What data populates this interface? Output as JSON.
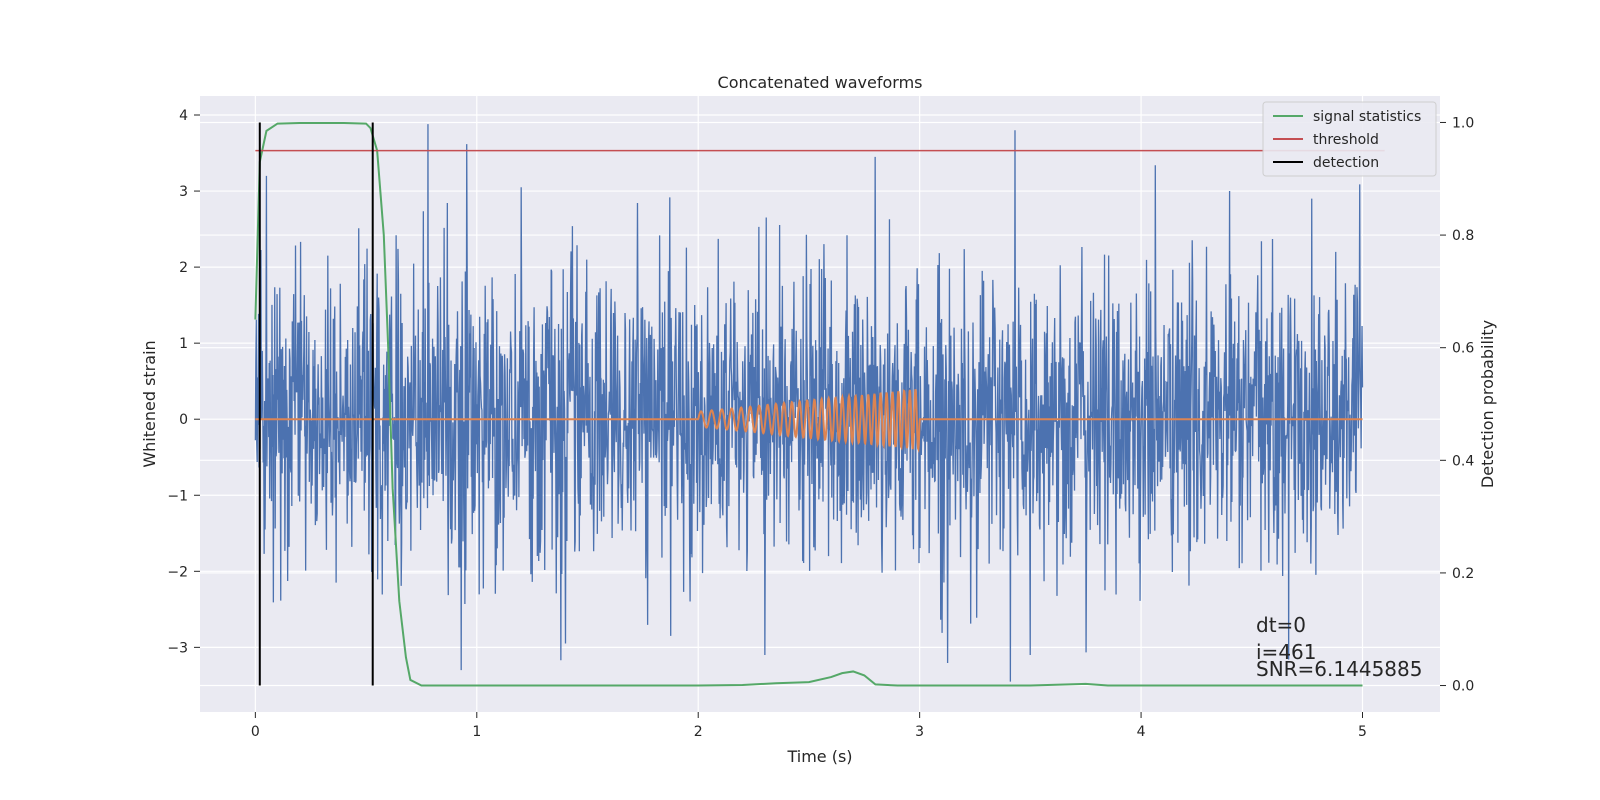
{
  "chart_data": {
    "type": "line",
    "title": "Concatenated waveforms",
    "xlabel": "Time (s)",
    "ylabel_left": "Whitened strain",
    "ylabel_right": "Detection probability",
    "xlim": [
      -0.25,
      5.35
    ],
    "ylim_left": [
      -3.85,
      4.25
    ],
    "ylim_right": [
      -0.047,
      1.047
    ],
    "xticks": [
      0,
      1,
      2,
      3,
      4,
      5
    ],
    "yticks_left": [
      -3,
      -2,
      -1,
      0,
      1,
      2,
      3,
      4
    ],
    "yticks_right": [
      0.0,
      0.2,
      0.4,
      0.6,
      0.8,
      1.0
    ],
    "ytick_labels_right": [
      "0.0",
      "0.2",
      "0.4",
      "0.6",
      "0.8",
      "1.0"
    ],
    "grid": true,
    "legend_position": "top-right",
    "colors": {
      "background": "#eaeaf2",
      "noise": "#4c72b0",
      "injection": "#dd8452",
      "signal": "#55a868",
      "threshold": "#c44e52",
      "detection": "#000000"
    },
    "series": [
      {
        "key": "noise",
        "axis": "left",
        "x_range": [
          0,
          5
        ],
        "spikes": [
          [
            0.05,
            3.2
          ],
          [
            0.78,
            3.88
          ],
          [
            1.2,
            3.05
          ],
          [
            2.8,
            3.45
          ],
          [
            3.43,
            3.8
          ],
          [
            4.4,
            3.0
          ],
          [
            4.77,
            2.9
          ],
          [
            0.93,
            -3.3
          ],
          [
            2.3,
            -3.1
          ],
          [
            3.41,
            -3.45
          ],
          [
            1.4,
            -2.95
          ],
          [
            3.5,
            -3.1
          ]
        ]
      },
      {
        "key": "injection",
        "axis": "left",
        "x": [
          0,
          2,
          2.25,
          2.5,
          2.75,
          3,
          3,
          5
        ],
        "amplitude": [
          0,
          0.1,
          0.17,
          0.25,
          0.32,
          0.4,
          0,
          0
        ],
        "chirp_window": [
          2,
          3
        ],
        "freq_start": 20,
        "freq_end": 40
      },
      {
        "name": "signal statistics",
        "key": "signal",
        "axis": "right",
        "x": [
          0,
          0.02,
          0.05,
          0.1,
          0.2,
          0.3,
          0.4,
          0.5,
          0.52,
          0.55,
          0.58,
          0.6,
          0.62,
          0.65,
          0.68,
          0.7,
          0.75,
          0.8,
          1.0,
          1.5,
          2.0,
          2.2,
          2.35,
          2.5,
          2.6,
          2.65,
          2.7,
          2.75,
          2.8,
          2.9,
          3.0,
          3.5,
          3.75,
          3.85,
          4.0,
          4.5,
          5.0
        ],
        "y": [
          0.65,
          0.93,
          0.985,
          0.998,
          0.999,
          0.999,
          0.999,
          0.998,
          0.99,
          0.95,
          0.8,
          0.6,
          0.35,
          0.15,
          0.05,
          0.01,
          0.0,
          0.0,
          0.0,
          0.0,
          0.0,
          0.001,
          0.004,
          0.006,
          0.015,
          0.022,
          0.025,
          0.018,
          0.002,
          0.0,
          0.0,
          0.0,
          0.003,
          0.0,
          0.0,
          0.0,
          0.0
        ]
      },
      {
        "name": "threshold",
        "key": "threshold",
        "axis": "right",
        "x": [
          0,
          5.1
        ],
        "y": [
          0.95,
          0.95
        ]
      },
      {
        "name": "detection",
        "key": "detection",
        "axis": "right",
        "x": [
          0.02,
          0.53
        ],
        "y_range": [
          0.0,
          1.0
        ]
      }
    ],
    "annotations": [
      "dt=0",
      "i=461",
      "SNR=6.1445885"
    ]
  }
}
